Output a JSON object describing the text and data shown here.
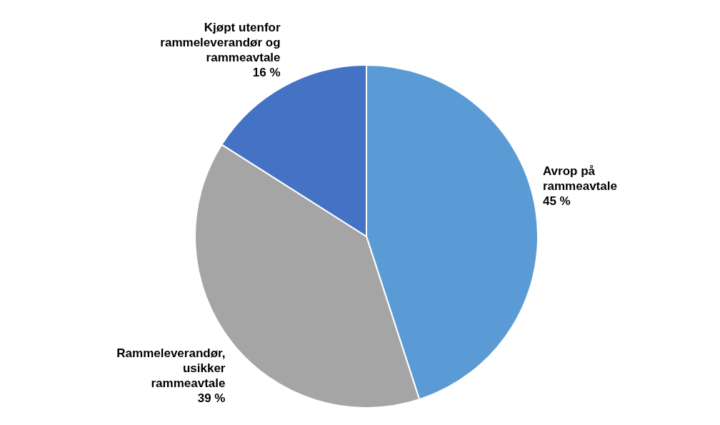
{
  "chart_data": {
    "type": "pie",
    "categories": [
      "Avrop på rammeavtale",
      "Rammeleverandør, usikker rammeavtale",
      "Kjøpt utenfor rammeleverandør og rammeavtale"
    ],
    "values": [
      45,
      39,
      16
    ],
    "colors": [
      "#5b9bd5",
      "#a5a5a5",
      "#4472c4"
    ],
    "value_labels": [
      "45 %",
      "39 %",
      "16 %"
    ],
    "legend": false
  }
}
